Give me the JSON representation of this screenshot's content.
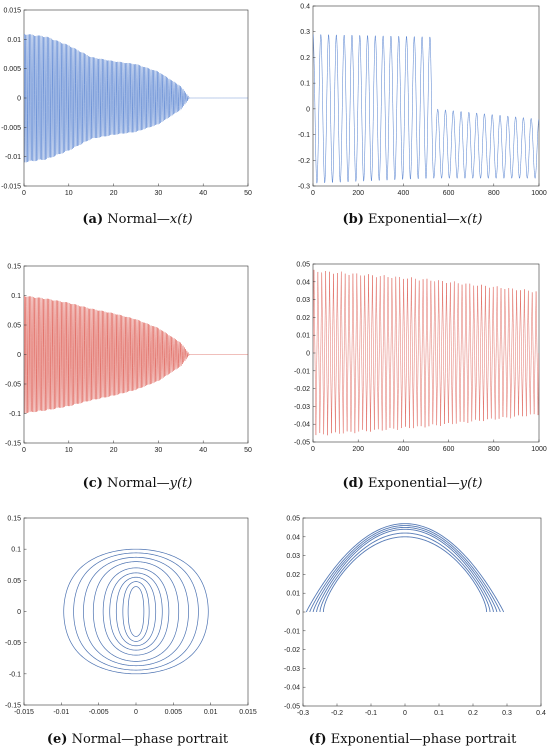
{
  "panels": [
    {
      "id": "a",
      "tag": "(a)",
      "title": "Normal",
      "sep": "—",
      "var": "x(t)",
      "suffix": ""
    },
    {
      "id": "b",
      "tag": "(b)",
      "title": "Exponential",
      "sep": "—",
      "var": "x(t)",
      "suffix": ""
    },
    {
      "id": "c",
      "tag": "(c)",
      "title": "Normal",
      "sep": "—",
      "var": "y(t)",
      "suffix": ""
    },
    {
      "id": "d",
      "tag": "(d)",
      "title": "Exponential",
      "sep": "—",
      "var": "y(t)",
      "suffix": ""
    },
    {
      "id": "e",
      "tag": "(e)",
      "title": "Normal",
      "sep": "—",
      "var": "",
      "suffix": "phase portrait"
    },
    {
      "id": "f",
      "tag": "(f)",
      "title": "Exponential",
      "sep": "—",
      "var": "",
      "suffix": "phase portrait"
    }
  ],
  "colors": {
    "blue": "#3d6fc9",
    "red": "#d9443a",
    "darkblue": "#1f4f9e",
    "axis": "#333333"
  },
  "chart_data": [
    {
      "id": "a",
      "type": "line",
      "color": "blue",
      "xlim": [
        0,
        50
      ],
      "ylim": [
        -0.015,
        0.015
      ],
      "xticks": [
        "0",
        "10",
        "20",
        "30",
        "40",
        "50"
      ],
      "yticks": [
        "-0.015",
        "-0.01",
        "-0.005",
        "0",
        "0.005",
        "0.01",
        "0.015"
      ],
      "series": [
        {
          "shape": "decaying-oscillation",
          "x": [
            0,
            5,
            10,
            15,
            20,
            25,
            30,
            35,
            37,
            40,
            50
          ],
          "y_amplitude": [
            0.011,
            0.0105,
            0.009,
            0.007,
            0.0063,
            0.0058,
            0.0045,
            0.002,
            0.0,
            0.0,
            0.0
          ]
        }
      ]
    },
    {
      "id": "b",
      "type": "line",
      "color": "blue",
      "xlim": [
        0,
        1000
      ],
      "ylim": [
        -0.3,
        0.4
      ],
      "xticks": [
        "0",
        "200",
        "400",
        "600",
        "800",
        "1000"
      ],
      "yticks": [
        "-0.3",
        "-0.2",
        "-0.1",
        "0",
        "0.1",
        "0.2",
        "0.3",
        "0.4"
      ],
      "series": [
        {
          "shape": "oscillation-shift",
          "x": [
            0,
            520,
            540,
            1000
          ],
          "y_max": [
            0.29,
            0.28,
            0.0,
            -0.04
          ],
          "y_min": [
            -0.29,
            -0.27,
            -0.27,
            -0.27
          ]
        }
      ]
    },
    {
      "id": "c",
      "type": "line",
      "color": "red",
      "xlim": [
        0,
        50
      ],
      "ylim": [
        -0.15,
        0.15
      ],
      "xticks": [
        "0",
        "10",
        "20",
        "30",
        "40",
        "50"
      ],
      "yticks": [
        "-0.15",
        "-0.1",
        "-0.05",
        "0",
        "0.05",
        "0.1",
        "0.15"
      ],
      "series": [
        {
          "shape": "decaying-oscillation",
          "x": [
            0,
            5,
            10,
            15,
            20,
            25,
            30,
            35,
            37,
            40,
            50
          ],
          "y_amplitude": [
            0.1,
            0.095,
            0.088,
            0.078,
            0.07,
            0.06,
            0.045,
            0.02,
            0.0,
            0.0,
            0.0
          ]
        }
      ]
    },
    {
      "id": "d",
      "type": "line",
      "color": "red",
      "xlim": [
        0,
        1000
      ],
      "ylim": [
        -0.05,
        0.05
      ],
      "xticks": [
        "0",
        "200",
        "400",
        "600",
        "800",
        "1000"
      ],
      "yticks": [
        "-0.05",
        "-0.04",
        "-0.03",
        "-0.02",
        "-0.01",
        "0",
        "0.01",
        "0.02",
        "0.03",
        "0.04",
        "0.05"
      ],
      "series": [
        {
          "shape": "oscillation-envelope",
          "x": [
            0,
            500,
            1000
          ],
          "y_max": [
            0.047,
            0.042,
            0.035
          ],
          "y_min": [
            -0.047,
            -0.042,
            -0.035
          ]
        }
      ]
    },
    {
      "id": "e",
      "type": "line",
      "color": "darkblue",
      "xlim": [
        -0.015,
        0.015
      ],
      "ylim": [
        -0.15,
        0.15
      ],
      "xticks": [
        "-0.015",
        "-0.01",
        "-0.005",
        "0",
        "0.005",
        "0.01",
        "0.015"
      ],
      "yticks": [
        "-0.15",
        "-0.1",
        "-0.05",
        "0",
        "0.05",
        "0.1",
        "0.15"
      ],
      "series": [
        {
          "shape": "nested-lens-orbits",
          "x_amplitude": [
            0.011,
            0.0095,
            0.008,
            0.0065,
            0.005,
            0.004,
            0.003,
            0.002,
            0.0012
          ],
          "y_amplitude": [
            0.1,
            0.094,
            0.087,
            0.08,
            0.07,
            0.062,
            0.055,
            0.048,
            0.04
          ]
        }
      ]
    },
    {
      "id": "f",
      "type": "line",
      "color": "darkblue",
      "xlim": [
        -0.3,
        0.4
      ],
      "ylim": [
        -0.05,
        0.05
      ],
      "xticks": [
        "-0.3",
        "-0.2",
        "-0.1",
        "0",
        "0.1",
        "0.2",
        "0.3",
        "0.4"
      ],
      "yticks": [
        "-0.05",
        "-0.04",
        "-0.03",
        "-0.02",
        "-0.01",
        "0",
        "0.01",
        "0.02",
        "0.03",
        "0.04",
        "0.05"
      ],
      "series": [
        {
          "shape": "figure-eight-orbits",
          "x_amplitude": [
            0.29,
            0.28,
            0.27,
            0.26,
            0.25,
            0.24
          ],
          "y_amplitude": [
            0.047,
            0.046,
            0.045,
            0.044,
            0.042,
            0.04
          ],
          "neck": [
            0.002,
            0.004,
            0.007,
            0.01,
            0.014,
            0.018
          ]
        }
      ]
    }
  ]
}
